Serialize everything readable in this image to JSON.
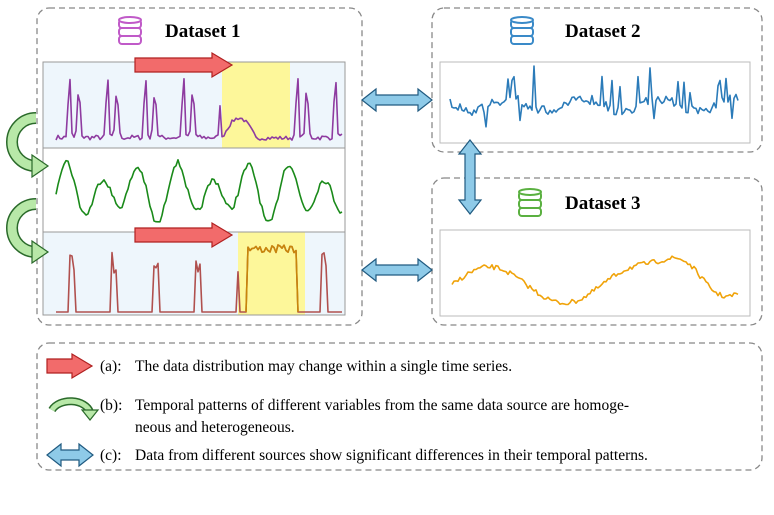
{
  "dataset_1": {
    "title": "Dataset 1"
  },
  "dataset_2": {
    "title": "Dataset 2"
  },
  "dataset_3": {
    "title": "Dataset 3"
  },
  "legend": [
    {
      "label": "(a):",
      "lines": [
        "The data distribution may change within a single time series."
      ]
    },
    {
      "label": "(b):",
      "lines": [
        "Temporal patterns of different variables from the same data source are homoge-",
        "neous and heterogeneous."
      ]
    },
    {
      "label": "(c):",
      "lines": [
        "Data from different sources show significant differences in their temporal patterns."
      ]
    }
  ]
}
